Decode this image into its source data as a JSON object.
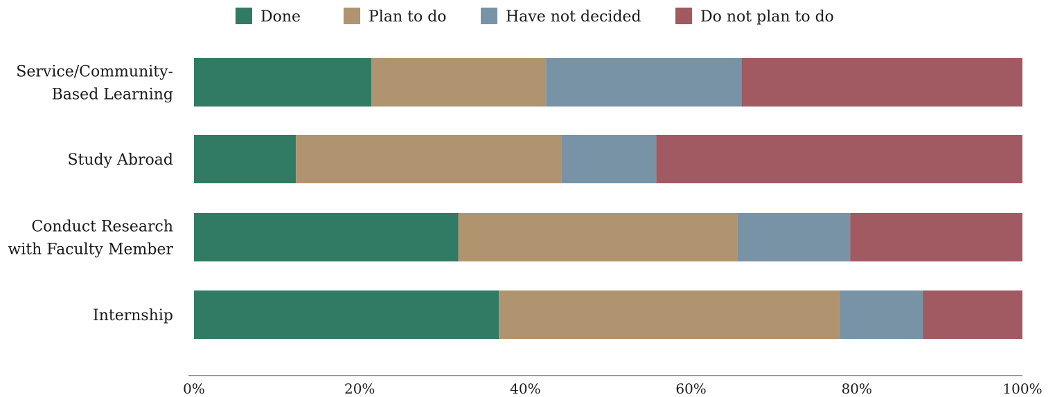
{
  "chart_data": {
    "type": "bar",
    "orientation": "horizontal",
    "stacked": true,
    "normalized": true,
    "categories": [
      [
        "Service/Community-",
        "Based Learning"
      ],
      [
        "Study Abroad"
      ],
      [
        "Conduct Research",
        "with Faculty Member"
      ],
      [
        "Internship"
      ]
    ],
    "series": [
      {
        "name": "Done",
        "color": "#317B65",
        "values": [
          21.4,
          12.3,
          31.9,
          36.8
        ]
      },
      {
        "name": "Plan to do",
        "color": "#B09470",
        "values": [
          21.1,
          32.1,
          33.7,
          41.1
        ]
      },
      {
        "name": "Have not decided",
        "color": "#7993A6",
        "values": [
          23.6,
          11.4,
          13.6,
          10.1
        ]
      },
      {
        "name": "Do not plan to do",
        "color": "#A15A62",
        "values": [
          33.9,
          44.2,
          20.8,
          12.0
        ]
      }
    ],
    "x_ticks": [
      "0%",
      "20%",
      "40%",
      "60%",
      "80%",
      "100%"
    ],
    "xlim": [
      0,
      100
    ],
    "legend_position": "top-center",
    "grid": false,
    "axis_color": "#9A9A9A"
  }
}
